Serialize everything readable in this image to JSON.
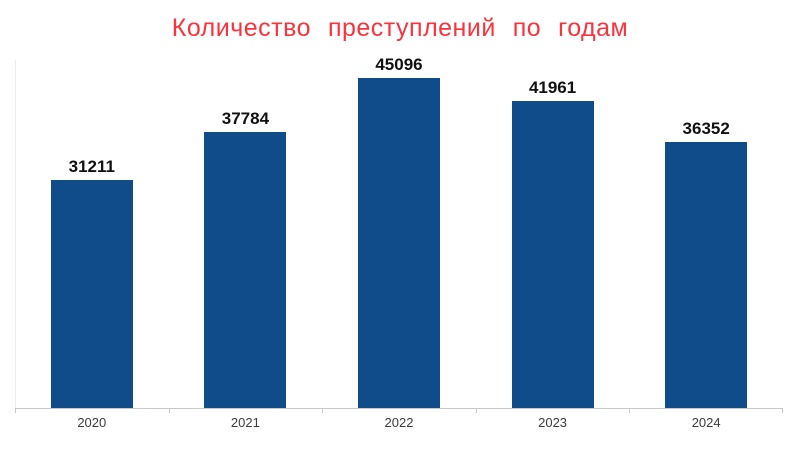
{
  "chart_data": {
    "type": "bar",
    "title": "Количество преступлений по годам",
    "title_color": "#FA333C",
    "categories": [
      "2020",
      "2021",
      "2022",
      "2023",
      "2024"
    ],
    "values": [
      31211,
      37784,
      45096,
      41961,
      36352
    ],
    "data_labels": [
      31211,
      37784,
      45096,
      41961,
      36352
    ],
    "xlabel": "",
    "ylabel": "",
    "ylim": [
      0,
      45096
    ],
    "grid": false,
    "legend": false,
    "bar_color": "#104C8A",
    "value_label_color": "#111111",
    "axis_color": "#C9C9C9",
    "tick_label_color": "#3C3C3C",
    "background_color": "#FFFFFF"
  }
}
